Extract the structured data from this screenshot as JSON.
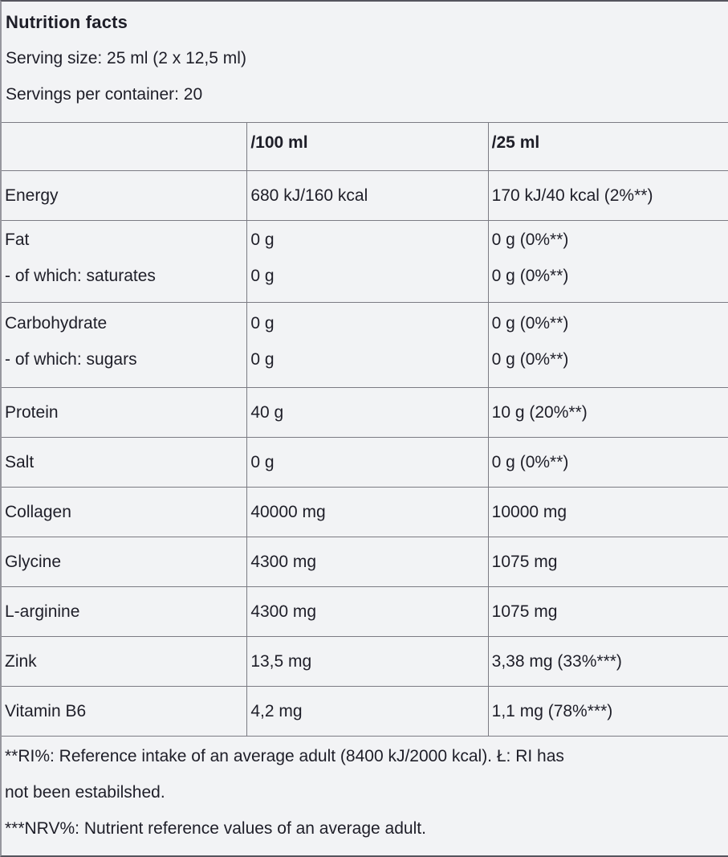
{
  "colors": {
    "background": "#f2f3f5",
    "border_line": "#7b7b83",
    "frame_dark": "#55555e",
    "text": "#1e1e28"
  },
  "intro": {
    "title": "Nutrition facts",
    "serving_size": "Serving size: 25 ml (2 x 12,5 ml)",
    "servings_per_container": "Servings per container: 20"
  },
  "table": {
    "columns": {
      "c1": "",
      "c2": "/100 ml",
      "c3": "/25 ml"
    },
    "rows": [
      {
        "name": [
          "Energy"
        ],
        "per100": [
          "680 kJ/160 kcal"
        ],
        "per25": [
          "170 kJ/40 kcal (2%**)"
        ]
      },
      {
        "name": [
          "Fat",
          "- of which: saturates"
        ],
        "per100": [
          "0 g",
          "0 g"
        ],
        "per25": [
          "0 g (0%**)",
          "0 g (0%**)"
        ]
      },
      {
        "name": [
          "Carbohydrate",
          "- of which: sugars"
        ],
        "per100": [
          "0 g",
          "0 g"
        ],
        "per25": [
          "0 g (0%**)",
          "0 g (0%**)"
        ]
      },
      {
        "name": [
          "Protein"
        ],
        "per100": [
          "40 g"
        ],
        "per25": [
          "10 g (20%**)"
        ]
      },
      {
        "name": [
          "Salt"
        ],
        "per100": [
          "0 g"
        ],
        "per25": [
          "0 g (0%**)"
        ]
      },
      {
        "name": [
          "Collagen"
        ],
        "per100": [
          "40000 mg"
        ],
        "per25": [
          "10000 mg"
        ]
      },
      {
        "name": [
          "Glycine"
        ],
        "per100": [
          "4300 mg"
        ],
        "per25": [
          "1075 mg"
        ]
      },
      {
        "name": [
          "L-arginine"
        ],
        "per100": [
          "4300 mg"
        ],
        "per25": [
          "1075 mg"
        ]
      },
      {
        "name": [
          "Zink"
        ],
        "per100": [
          "13,5 mg"
        ],
        "per25": [
          "3,38 mg (33%***)"
        ]
      },
      {
        "name": [
          "Vitamin B6"
        ],
        "per100": [
          "4,2 mg"
        ],
        "per25": [
          "1,1 mg (78%***)"
        ]
      }
    ]
  },
  "footnotes": {
    "ri_line1": "**RI%: Reference intake of an average adult (8400 kJ/2000 kcal). Ł: RI has",
    "ri_line2": "not been estabilshed.",
    "nrv_line": "***NRV%: Nutrient reference values of an average adult."
  }
}
